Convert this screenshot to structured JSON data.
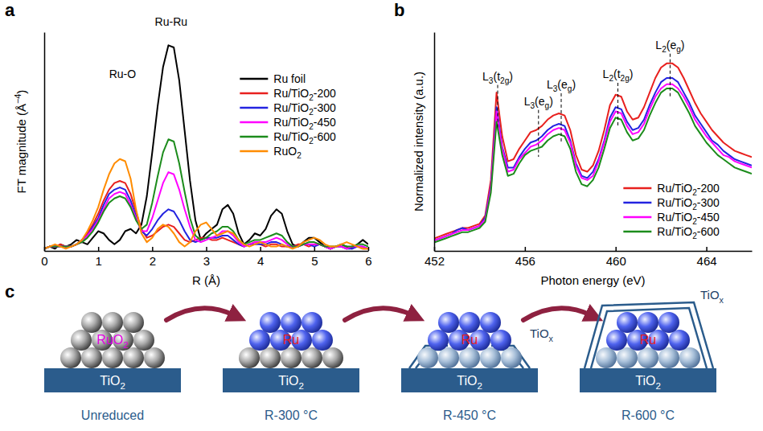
{
  "chart_data": [
    {
      "type": "line",
      "panel_label": "a",
      "xlabel": "R (Å)",
      "ylabel": "FT magnitude (Å−4)",
      "xlim": [
        0,
        6
      ],
      "ylim": [
        0,
        1
      ],
      "xticks": [
        0,
        1,
        2,
        3,
        4,
        5,
        6
      ],
      "yticks": [],
      "tick_labels": "x",
      "legend": "upper right",
      "x": [
        0,
        0.1,
        0.2,
        0.3,
        0.4,
        0.5,
        0.6,
        0.7,
        0.8,
        0.9,
        1,
        1.1,
        1.2,
        1.3,
        1.4,
        1.5,
        1.6,
        1.7,
        1.8,
        1.9,
        2,
        2.1,
        2.2,
        2.3,
        2.4,
        2.5,
        2.6,
        2.7,
        2.8,
        2.9,
        3,
        3.1,
        3.2,
        3.3,
        3.4,
        3.5,
        3.6,
        3.7,
        3.8,
        3.9,
        4,
        4.1,
        4.2,
        4.3,
        4.4,
        4.5,
        4.6,
        4.7,
        4.8,
        4.9,
        5,
        5.1,
        5.2,
        5.3,
        5.4,
        5.5,
        5.6,
        5.7,
        5.8,
        5.9,
        6
      ],
      "series": [
        {
          "name": "Ru foil",
          "color": "#000000",
          "values": [
            0.01,
            0.02,
            0.01,
            0.03,
            0.02,
            0.03,
            0.05,
            0.04,
            0.03,
            0.06,
            0.09,
            0.08,
            0.05,
            0.03,
            0.05,
            0.09,
            0.1,
            0.08,
            0.12,
            0.25,
            0.45,
            0.66,
            0.84,
            0.94,
            0.93,
            0.78,
            0.55,
            0.32,
            0.14,
            0.05,
            0.08,
            0.1,
            0.12,
            0.19,
            0.21,
            0.17,
            0.08,
            0.03,
            0.05,
            0.08,
            0.07,
            0.1,
            0.16,
            0.19,
            0.17,
            0.09,
            0.03,
            0.02,
            0.04,
            0.06,
            0.06,
            0.04,
            0.02,
            0.01,
            0.02,
            0.03,
            0.02,
            0.01,
            0.03,
            0.05,
            0.03
          ]
        },
        {
          "name": "Ru/TiO2-200",
          "color": "#e8201e",
          "values": [
            0.01,
            0.02,
            0.02,
            0.03,
            0.02,
            0.02,
            0.03,
            0.05,
            0.08,
            0.12,
            0.17,
            0.23,
            0.28,
            0.31,
            0.32,
            0.31,
            0.26,
            0.18,
            0.1,
            0.06,
            0.07,
            0.09,
            0.11,
            0.12,
            0.11,
            0.08,
            0.05,
            0.04,
            0.05,
            0.06,
            0.06,
            0.05,
            0.05,
            0.06,
            0.05,
            0.04,
            0.03,
            0.02,
            0.03,
            0.04,
            0.03,
            0.02,
            0.03,
            0.03,
            0.02,
            0.02,
            0.02,
            0.03,
            0.03,
            0.02,
            0.03,
            0.03,
            0.02,
            0.01,
            0.02,
            0.02,
            0.01,
            0.02,
            0.02,
            0.01,
            0.01
          ]
        },
        {
          "name": "Ru/TiO2-300",
          "color": "#2323e0",
          "values": [
            0.01,
            0.02,
            0.02,
            0.02,
            0.02,
            0.02,
            0.03,
            0.05,
            0.07,
            0.11,
            0.15,
            0.21,
            0.26,
            0.28,
            0.29,
            0.28,
            0.23,
            0.16,
            0.09,
            0.07,
            0.1,
            0.14,
            0.17,
            0.19,
            0.18,
            0.14,
            0.09,
            0.05,
            0.04,
            0.05,
            0.06,
            0.06,
            0.06,
            0.07,
            0.07,
            0.05,
            0.03,
            0.02,
            0.03,
            0.03,
            0.03,
            0.03,
            0.04,
            0.04,
            0.03,
            0.02,
            0.02,
            0.02,
            0.03,
            0.03,
            0.02,
            0.03,
            0.02,
            0.01,
            0.02,
            0.02,
            0.01,
            0.01,
            0.02,
            0.02,
            0.01
          ]
        },
        {
          "name": "Ru/TiO2-450",
          "color": "#ff00ff",
          "values": [
            0.01,
            0.02,
            0.02,
            0.02,
            0.02,
            0.02,
            0.03,
            0.04,
            0.07,
            0.1,
            0.14,
            0.19,
            0.24,
            0.26,
            0.27,
            0.26,
            0.21,
            0.15,
            0.09,
            0.09,
            0.15,
            0.23,
            0.31,
            0.36,
            0.35,
            0.28,
            0.19,
            0.11,
            0.05,
            0.04,
            0.05,
            0.06,
            0.07,
            0.09,
            0.09,
            0.07,
            0.04,
            0.02,
            0.03,
            0.04,
            0.04,
            0.04,
            0.05,
            0.06,
            0.05,
            0.03,
            0.02,
            0.02,
            0.03,
            0.03,
            0.03,
            0.03,
            0.02,
            0.01,
            0.02,
            0.02,
            0.01,
            0.02,
            0.02,
            0.02,
            0.01
          ]
        },
        {
          "name": "Ru/TiO2-600",
          "color": "#1c8c1c",
          "values": [
            0.01,
            0.02,
            0.02,
            0.02,
            0.02,
            0.02,
            0.03,
            0.04,
            0.06,
            0.09,
            0.13,
            0.18,
            0.22,
            0.24,
            0.25,
            0.24,
            0.2,
            0.14,
            0.1,
            0.12,
            0.22,
            0.34,
            0.45,
            0.51,
            0.5,
            0.4,
            0.27,
            0.15,
            0.07,
            0.05,
            0.06,
            0.08,
            0.09,
            0.11,
            0.11,
            0.09,
            0.05,
            0.03,
            0.04,
            0.05,
            0.05,
            0.06,
            0.07,
            0.08,
            0.07,
            0.04,
            0.02,
            0.02,
            0.03,
            0.04,
            0.04,
            0.03,
            0.02,
            0.02,
            0.02,
            0.03,
            0.02,
            0.02,
            0.03,
            0.03,
            0.02
          ]
        },
        {
          "name": "RuO2",
          "color": "#ff8c00",
          "values": [
            0.01,
            0.02,
            0.03,
            0.02,
            0.01,
            0.02,
            0.03,
            0.05,
            0.09,
            0.14,
            0.2,
            0.28,
            0.35,
            0.4,
            0.42,
            0.41,
            0.33,
            0.19,
            0.08,
            0.04,
            0.06,
            0.1,
            0.12,
            0.11,
            0.08,
            0.04,
            0.02,
            0.04,
            0.09,
            0.12,
            0.13,
            0.1,
            0.07,
            0.08,
            0.09,
            0.08,
            0.05,
            0.03,
            0.02,
            0.03,
            0.04,
            0.03,
            0.02,
            0.02,
            0.03,
            0.02,
            0.01,
            0.02,
            0.04,
            0.05,
            0.06,
            0.05,
            0.03,
            0.02,
            0.02,
            0.03,
            0.04,
            0.03,
            0.02,
            0.01,
            0.01
          ]
        }
      ],
      "annotations": [
        {
          "text": "Ru-O",
          "x": 1.45,
          "y": 0.79
        },
        {
          "text": "Ru-Ru",
          "x": 2.35,
          "y": 1.03
        }
      ]
    },
    {
      "type": "line",
      "panel_label": "b",
      "xlabel": "Photon energy (eV)",
      "ylabel": "Normalized intensity (a.u.)",
      "xlim": [
        452,
        466
      ],
      "ylim": [
        0,
        1.05
      ],
      "xticks": [
        452,
        456,
        460,
        464
      ],
      "yticks": [],
      "tick_labels": "x",
      "legend": "lower right",
      "x": [
        452,
        452.25,
        452.5,
        452.75,
        453,
        453.25,
        453.5,
        453.75,
        454,
        454.25,
        454.5,
        454.75,
        455,
        455.25,
        455.5,
        455.75,
        456,
        456.25,
        456.5,
        456.75,
        457,
        457.25,
        457.5,
        457.75,
        458,
        458.25,
        458.5,
        458.75,
        459,
        459.25,
        459.5,
        459.75,
        460,
        460.25,
        460.5,
        460.75,
        461,
        461.25,
        461.5,
        461.75,
        462,
        462.25,
        462.5,
        462.75,
        463,
        463.25,
        463.5,
        463.75,
        464,
        464.25,
        464.5,
        464.75,
        465,
        465.25,
        465.5,
        465.75,
        466
      ],
      "series": [
        {
          "name": "Ru/TiO2-200",
          "color": "#e8201e",
          "values": [
            0.06,
            0.07,
            0.08,
            0.09,
            0.1,
            0.11,
            0.11,
            0.12,
            0.13,
            0.17,
            0.34,
            0.76,
            0.55,
            0.43,
            0.44,
            0.49,
            0.53,
            0.57,
            0.58,
            0.6,
            0.63,
            0.65,
            0.66,
            0.65,
            0.58,
            0.46,
            0.39,
            0.38,
            0.41,
            0.48,
            0.58,
            0.7,
            0.75,
            0.74,
            0.67,
            0.63,
            0.64,
            0.69,
            0.76,
            0.83,
            0.88,
            0.9,
            0.9,
            0.88,
            0.83,
            0.77,
            0.71,
            0.66,
            0.62,
            0.58,
            0.55,
            0.52,
            0.5,
            0.48,
            0.47,
            0.46,
            0.45
          ]
        },
        {
          "name": "Ru/TiO2-300",
          "color": "#2323e0",
          "values": [
            0.05,
            0.06,
            0.07,
            0.08,
            0.1,
            0.11,
            0.1,
            0.11,
            0.12,
            0.16,
            0.31,
            0.69,
            0.5,
            0.4,
            0.4,
            0.45,
            0.49,
            0.52,
            0.53,
            0.55,
            0.58,
            0.6,
            0.61,
            0.6,
            0.53,
            0.42,
            0.36,
            0.35,
            0.38,
            0.44,
            0.53,
            0.64,
            0.69,
            0.68,
            0.62,
            0.58,
            0.59,
            0.63,
            0.7,
            0.76,
            0.81,
            0.83,
            0.83,
            0.81,
            0.76,
            0.71,
            0.65,
            0.61,
            0.57,
            0.53,
            0.51,
            0.48,
            0.46,
            0.44,
            0.43,
            0.42,
            0.41
          ]
        },
        {
          "name": "Ru/TiO2-450",
          "color": "#ff00ff",
          "values": [
            0.05,
            0.06,
            0.07,
            0.08,
            0.09,
            0.1,
            0.1,
            0.11,
            0.12,
            0.15,
            0.3,
            0.67,
            0.49,
            0.38,
            0.39,
            0.44,
            0.47,
            0.5,
            0.51,
            0.53,
            0.56,
            0.58,
            0.59,
            0.58,
            0.52,
            0.41,
            0.35,
            0.34,
            0.36,
            0.43,
            0.52,
            0.62,
            0.67,
            0.66,
            0.6,
            0.56,
            0.57,
            0.61,
            0.68,
            0.74,
            0.78,
            0.8,
            0.8,
            0.78,
            0.74,
            0.69,
            0.63,
            0.59,
            0.55,
            0.52,
            0.49,
            0.46,
            0.45,
            0.43,
            0.42,
            0.41,
            0.4
          ]
        },
        {
          "name": "Ru/TiO2-600",
          "color": "#1c8c1c",
          "values": [
            0.04,
            0.05,
            0.06,
            0.07,
            0.08,
            0.09,
            0.09,
            0.1,
            0.11,
            0.14,
            0.28,
            0.62,
            0.46,
            0.36,
            0.37,
            0.42,
            0.46,
            0.48,
            0.49,
            0.5,
            0.53,
            0.55,
            0.56,
            0.55,
            0.49,
            0.38,
            0.32,
            0.31,
            0.34,
            0.4,
            0.49,
            0.59,
            0.64,
            0.63,
            0.57,
            0.53,
            0.54,
            0.58,
            0.65,
            0.71,
            0.76,
            0.78,
            0.78,
            0.76,
            0.71,
            0.66,
            0.6,
            0.56,
            0.52,
            0.49,
            0.46,
            0.44,
            0.42,
            0.4,
            0.39,
            0.38,
            0.37
          ]
        }
      ],
      "annotations": [
        {
          "text": "L3(t2g)",
          "x": 454.8,
          "y": 0.82,
          "line_style": "dashed"
        },
        {
          "text": "L3(eg)",
          "x": 456.6,
          "y": 0.7,
          "line_style": "dashed"
        },
        {
          "text": "L3(eg)",
          "x": 457.6,
          "y": 0.78,
          "line_style": "dashed"
        },
        {
          "text": "L2(t2g)",
          "x": 460.1,
          "y": 0.83,
          "line_style": "dashed"
        },
        {
          "text": "L2(eg)",
          "x": 462.4,
          "y": 0.97,
          "line_style": "dashed"
        }
      ]
    }
  ],
  "diagram": {
    "panel_label": "c",
    "stages": [
      {
        "label": "Unreduced",
        "support": "TiO2",
        "cluster": "RuO2",
        "color": "#e000e0"
      },
      {
        "label": "R-300 °C",
        "support": "TiO2",
        "cluster": "Ru",
        "color": "#e8201e"
      },
      {
        "label": "R-450 °C",
        "support": "TiO2",
        "cluster": "Ru",
        "color": "#e8201e",
        "overlayer": "TiOx"
      },
      {
        "label": "R-600 °C",
        "support": "TiO2",
        "cluster": "Ru",
        "color": "#e8201e",
        "overlayer": "TiOx"
      }
    ]
  }
}
